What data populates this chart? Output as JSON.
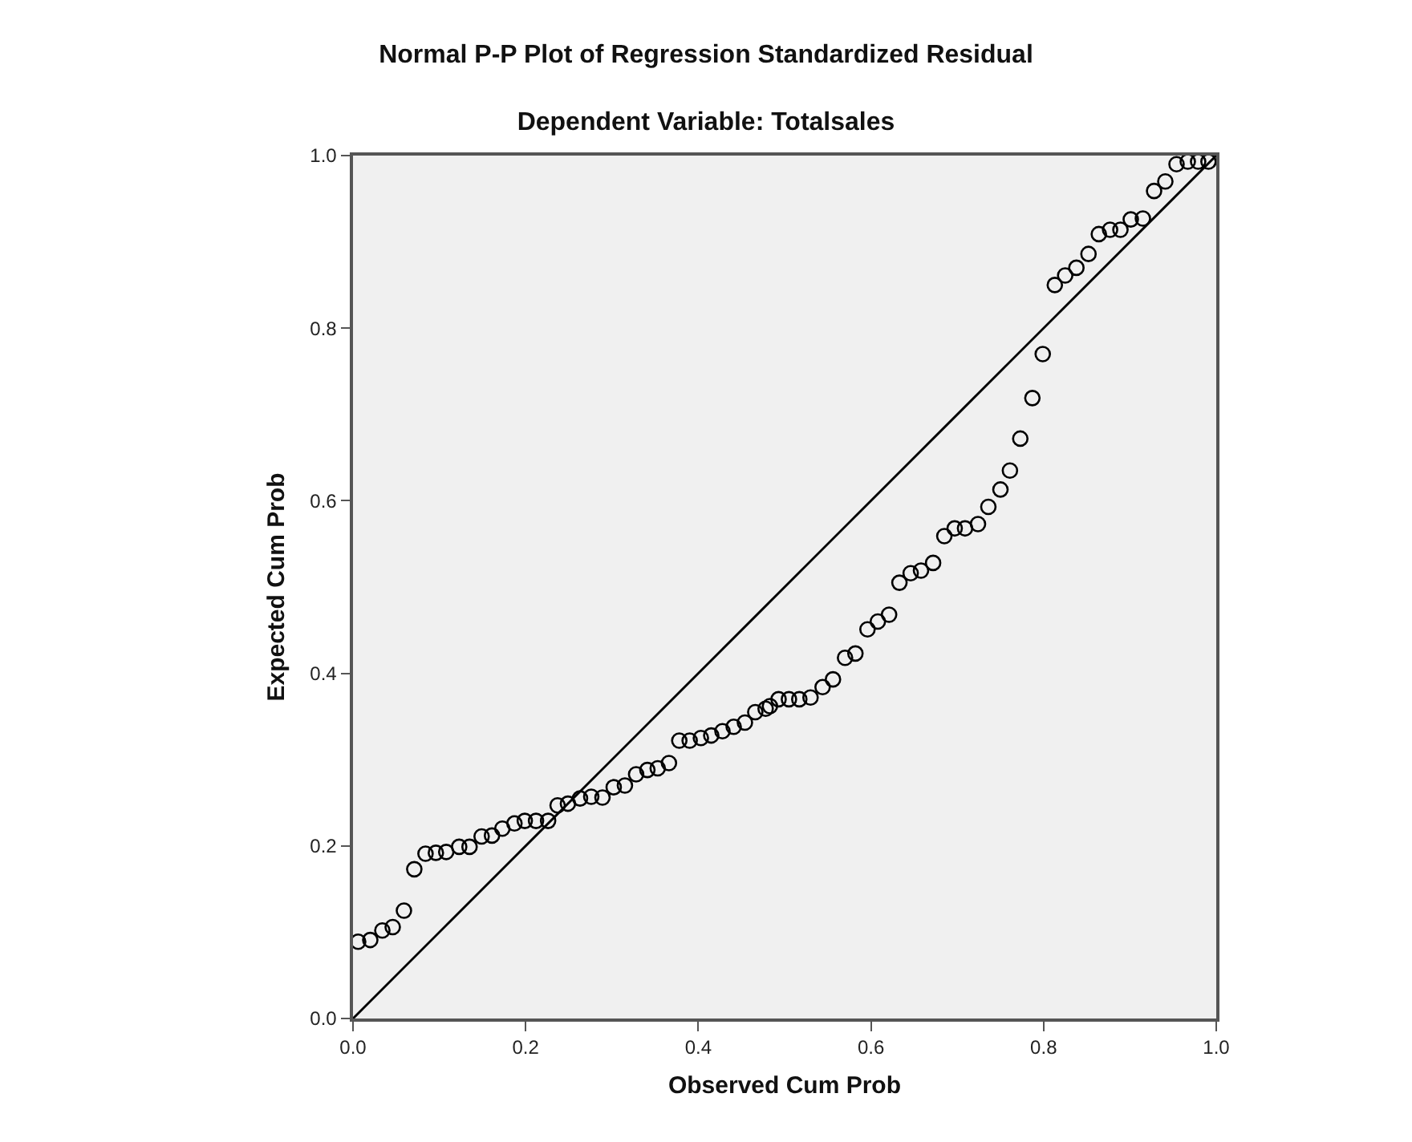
{
  "chart_data": {
    "type": "scatter",
    "title": "Normal P-P Plot of Regression Standardized Residual",
    "subtitle": "Dependent Variable: Totalsales",
    "xlabel": "Observed Cum Prob",
    "ylabel": "Expected Cum Prob",
    "xlim": [
      0,
      1
    ],
    "ylim": [
      0,
      1
    ],
    "xticks": [
      {
        "value": 0,
        "label": "0.0"
      },
      0.2,
      0.4,
      0.6,
      0.8,
      {
        "value": 1,
        "label": "1.0"
      }
    ],
    "yticks": [
      {
        "value": 0,
        "label": "0.0"
      },
      0.2,
      0.4,
      0.6,
      0.8,
      {
        "value": 1,
        "label": "1.0"
      }
    ],
    "grid": false,
    "marker": "circle",
    "series": [
      {
        "color": "#000000",
        "x": [
          0.006,
          0.02,
          0.034,
          0.046,
          0.059,
          0.071,
          0.084,
          0.096,
          0.108,
          0.123,
          0.135,
          0.149,
          0.161,
          0.173,
          0.187,
          0.199,
          0.212,
          0.226,
          0.237,
          0.249,
          0.263,
          0.276,
          0.289,
          0.302,
          0.315,
          0.328,
          0.341,
          0.353,
          0.366,
          0.378,
          0.39,
          0.403,
          0.415,
          0.428,
          0.441,
          0.454,
          0.466,
          0.478,
          0.483,
          0.493,
          0.505,
          0.517,
          0.53,
          0.544,
          0.556,
          0.57,
          0.582,
          0.596,
          0.608,
          0.621,
          0.633,
          0.646,
          0.658,
          0.672,
          0.685,
          0.697,
          0.709,
          0.724,
          0.736,
          0.75,
          0.761,
          0.773,
          0.787,
          0.799,
          0.813,
          0.825,
          0.838,
          0.852,
          0.864,
          0.877,
          0.889,
          0.901,
          0.915,
          0.928,
          0.941,
          0.954,
          0.967,
          0.979,
          0.991
        ],
        "values": [
          0.089,
          0.091,
          0.102,
          0.106,
          0.125,
          0.173,
          0.191,
          0.192,
          0.193,
          0.199,
          0.199,
          0.211,
          0.212,
          0.22,
          0.226,
          0.229,
          0.229,
          0.229,
          0.247,
          0.249,
          0.255,
          0.257,
          0.256,
          0.268,
          0.27,
          0.283,
          0.288,
          0.29,
          0.296,
          0.322,
          0.322,
          0.325,
          0.328,
          0.333,
          0.338,
          0.343,
          0.355,
          0.359,
          0.362,
          0.37,
          0.37,
          0.37,
          0.372,
          0.384,
          0.393,
          0.418,
          0.423,
          0.451,
          0.46,
          0.468,
          0.505,
          0.516,
          0.519,
          0.528,
          0.559,
          0.568,
          0.568,
          0.573,
          0.593,
          0.613,
          0.635,
          0.672,
          0.719,
          0.77,
          0.85,
          0.861,
          0.87,
          0.886,
          0.909,
          0.914,
          0.914,
          0.926,
          0.927,
          0.959,
          0.97,
          0.99,
          0.993,
          0.993,
          0.993
        ]
      },
      {
        "type": "line",
        "color": "#000000",
        "marker": "none",
        "line_style": "solid",
        "x": [
          0,
          1
        ],
        "values": [
          0,
          1
        ]
      }
    ]
  }
}
